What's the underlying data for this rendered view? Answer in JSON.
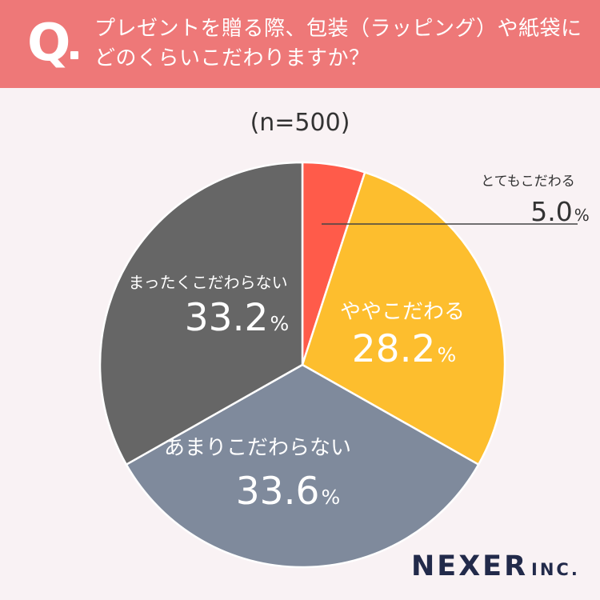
{
  "header": {
    "q_mark": "Q",
    "question_line1": "プレゼントを贈る際、包装（ラッピング）や紙袋に",
    "question_line2": "どのくらいこだわりますか？"
  },
  "sample_label": "(n=500)",
  "logo": {
    "main": "NEXER",
    "suffix": "INC."
  },
  "colors": {
    "header": "#ee7878",
    "background": "#f9f2f4",
    "slice_very": "#ff5b4a",
    "slice_somewhat": "#fdbe2e",
    "slice_not_much": "#7f8a9c",
    "slice_not_at_all": "#666666"
  },
  "chart_data": {
    "type": "pie",
    "start": "top, clockwise",
    "slices": [
      {
        "label": "とてもこだわる",
        "value": 5.0,
        "display": "5.0",
        "unit": "%",
        "color": "#ff5b4a"
      },
      {
        "label": "ややこだわる",
        "value": 28.2,
        "display": "28.2",
        "unit": "%",
        "color": "#fdbe2e"
      },
      {
        "label": "あまりこだわらない",
        "value": 33.6,
        "display": "33.6",
        "unit": "%",
        "color": "#7f8a9c"
      },
      {
        "label": "まったくこだわらない",
        "value": 33.2,
        "display": "33.2",
        "unit": "%",
        "color": "#666666"
      }
    ]
  }
}
